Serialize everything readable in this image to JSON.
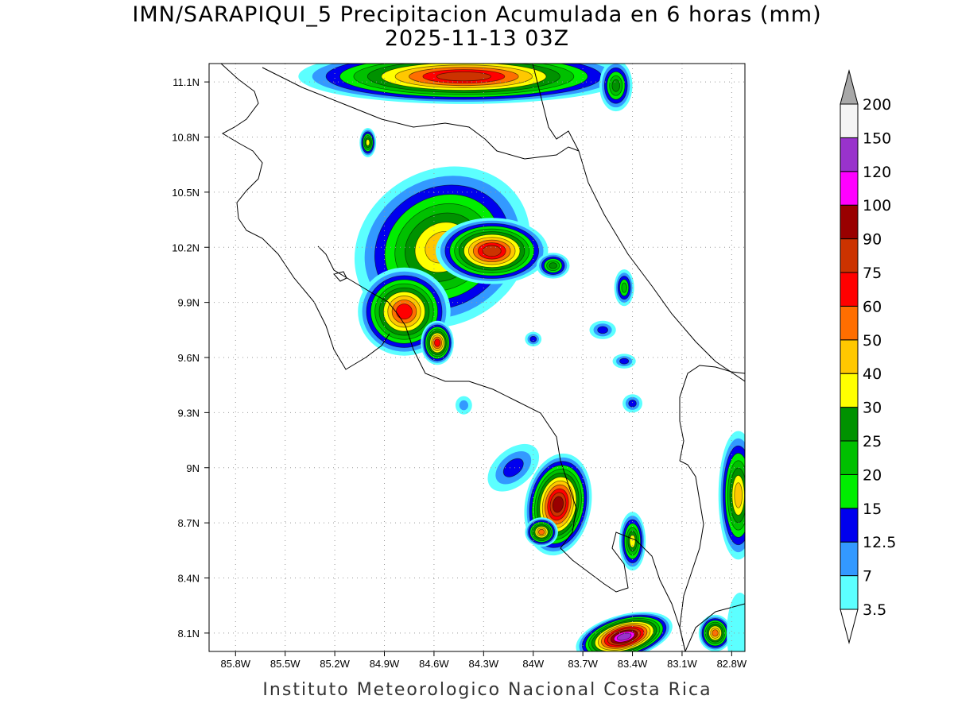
{
  "title_line1": "IMN/SARAPIQUI_5 Precipitacion Acumulada en 6 horas (mm)",
  "title_line2": "2025-11-13 03Z",
  "credit": "Instituto Meteorologico Nacional Costa Rica",
  "map_extent": {
    "lon_min": -85.96,
    "lon_max": -82.72,
    "lat_min": 8.0,
    "lat_max": 11.2
  },
  "lon_ticks": [
    {
      "value": -85.8,
      "label": "85.8W"
    },
    {
      "value": -85.5,
      "label": "85.5W"
    },
    {
      "value": -85.2,
      "label": "85.2W"
    },
    {
      "value": -84.9,
      "label": "84.9W"
    },
    {
      "value": -84.6,
      "label": "84.6W"
    },
    {
      "value": -84.3,
      "label": "84.3W"
    },
    {
      "value": -84.0,
      "label": "84W"
    },
    {
      "value": -83.7,
      "label": "83.7W"
    },
    {
      "value": -83.4,
      "label": "83.4W"
    },
    {
      "value": -83.1,
      "label": "83.1W"
    },
    {
      "value": -82.8,
      "label": "82.8W"
    }
  ],
  "lat_ticks": [
    {
      "value": 11.1,
      "label": "11.1N"
    },
    {
      "value": 10.8,
      "label": "10.8N"
    },
    {
      "value": 10.5,
      "label": "10.5N"
    },
    {
      "value": 10.2,
      "label": "10.2N"
    },
    {
      "value": 9.9,
      "label": "9.9N"
    },
    {
      "value": 9.6,
      "label": "9.6N"
    },
    {
      "value": 9.3,
      "label": "9.3N"
    },
    {
      "value": 9.0,
      "label": "9N"
    },
    {
      "value": 8.7,
      "label": "8.7N"
    },
    {
      "value": 8.4,
      "label": "8.4N"
    },
    {
      "value": 8.1,
      "label": "8.1N"
    }
  ],
  "legend": [
    {
      "label": "3.5",
      "color": "#5cffff"
    },
    {
      "label": "7",
      "color": "#3399ff"
    },
    {
      "label": "12.5",
      "color": "#0000ee"
    },
    {
      "label": "15",
      "color": "#00ee00"
    },
    {
      "label": "20",
      "color": "#00c000"
    },
    {
      "label": "25",
      "color": "#009200"
    },
    {
      "label": "30",
      "color": "#ffff00"
    },
    {
      "label": "40",
      "color": "#ffc800"
    },
    {
      "label": "50",
      "color": "#ff6e00"
    },
    {
      "label": "60",
      "color": "#ff0000"
    },
    {
      "label": "75",
      "color": "#cc3300"
    },
    {
      "label": "90",
      "color": "#990000"
    },
    {
      "label": "100",
      "color": "#ff00ff"
    },
    {
      "label": "120",
      "color": "#9933cc"
    },
    {
      "label": "150",
      "color": "#f4f4f4"
    },
    {
      "label": "200",
      "color": "#a8a8a8"
    }
  ],
  "precip_cells": [
    {
      "lon": -84.42,
      "lat": 11.13,
      "rx": 1.0,
      "ry": 0.15,
      "rot": 0,
      "max": 75
    },
    {
      "lon": -84.55,
      "lat": 10.2,
      "rx": 0.55,
      "ry": 0.42,
      "rot": -30,
      "max": 40
    },
    {
      "lon": -84.25,
      "lat": 10.18,
      "rx": 0.34,
      "ry": 0.18,
      "rot": 0,
      "max": 75
    },
    {
      "lon": -84.78,
      "lat": 9.85,
      "rx": 0.28,
      "ry": 0.24,
      "rot": 0,
      "max": 60
    },
    {
      "lon": -84.58,
      "lat": 9.68,
      "rx": 0.1,
      "ry": 0.12,
      "rot": 0,
      "max": 60
    },
    {
      "lon": -83.85,
      "lat": 8.8,
      "rx": 0.2,
      "ry": 0.28,
      "rot": 10,
      "max": 90
    },
    {
      "lon": -83.95,
      "lat": 8.65,
      "rx": 0.1,
      "ry": 0.08,
      "rot": 0,
      "max": 50
    },
    {
      "lon": -83.4,
      "lat": 8.6,
      "rx": 0.08,
      "ry": 0.16,
      "rot": 0,
      "max": 30
    },
    {
      "lon": -83.45,
      "lat": 8.08,
      "rx": 0.3,
      "ry": 0.12,
      "rot": -15,
      "max": 120
    },
    {
      "lon": -82.9,
      "lat": 8.1,
      "rx": 0.1,
      "ry": 0.1,
      "rot": 0,
      "max": 50
    },
    {
      "lon": -82.76,
      "lat": 8.85,
      "rx": 0.12,
      "ry": 0.35,
      "rot": 0,
      "max": 40
    },
    {
      "lon": -83.88,
      "lat": 10.1,
      "rx": 0.1,
      "ry": 0.07,
      "rot": 0,
      "max": 25
    },
    {
      "lon": -83.5,
      "lat": 11.08,
      "rx": 0.1,
      "ry": 0.14,
      "rot": 0,
      "max": 25
    },
    {
      "lon": -85.0,
      "lat": 10.77,
      "rx": 0.05,
      "ry": 0.08,
      "rot": 0,
      "max": 30
    },
    {
      "lon": -84.12,
      "lat": 9.0,
      "rx": 0.18,
      "ry": 0.1,
      "rot": -40,
      "max": 12.5
    },
    {
      "lon": -83.4,
      "lat": 9.35,
      "rx": 0.06,
      "ry": 0.05,
      "rot": 0,
      "max": 12.5
    },
    {
      "lon": -84.42,
      "lat": 9.34,
      "rx": 0.05,
      "ry": 0.05,
      "rot": 0,
      "max": 7
    },
    {
      "lon": -83.58,
      "lat": 9.75,
      "rx": 0.08,
      "ry": 0.05,
      "rot": 0,
      "max": 12.5
    },
    {
      "lon": -83.45,
      "lat": 9.98,
      "rx": 0.06,
      "ry": 0.1,
      "rot": 0,
      "max": 20
    },
    {
      "lon": -84.0,
      "lat": 9.7,
      "rx": 0.05,
      "ry": 0.04,
      "rot": 0,
      "max": 12.5
    },
    {
      "lon": -83.45,
      "lat": 9.58,
      "rx": 0.07,
      "ry": 0.04,
      "rot": 0,
      "max": 12.5
    },
    {
      "lon": -82.75,
      "lat": 8.1,
      "rx": 0.08,
      "ry": 0.22,
      "rot": 0,
      "max": 3.5
    }
  ]
}
